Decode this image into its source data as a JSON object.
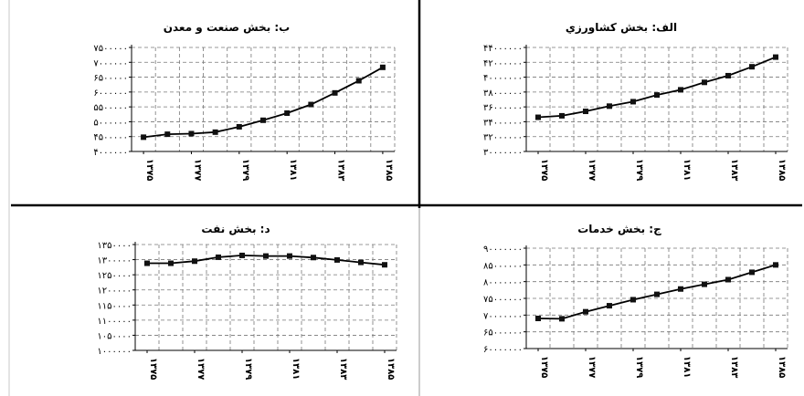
{
  "chart_data": [
    {
      "id": "a",
      "type": "line",
      "title": "الف: بخش کشاورزي",
      "x": [
        "۱۳۷۵",
        "۱۳۷۶",
        "۱۳۷۷",
        "۱۳۷۸",
        "۱۳۷۹",
        "۱۳۸۰",
        "۱۳۸۱",
        "۱۳۸۲",
        "۱۳۸۳",
        "۱۳۸۴",
        "۱۳۸۵"
      ],
      "x_tick_labels": [
        "۱۳۷۵",
        "۱۳۷۷",
        "۱۳۷۹",
        "۱۳۸۱",
        "۱۳۸۳",
        "۱۳۸۵"
      ],
      "y_tick_labels": [
        "۳۰۰۰۰۰۰۰",
        "۳۲۰۰۰۰۰۰",
        "۳۴۰۰۰۰۰۰",
        "۳۶۰۰۰۰۰۰",
        "۳۸۰۰۰۰۰۰",
        "۴۰۰۰۰۰۰۰",
        "۴۲۰۰۰۰۰۰",
        "۴۴۰۰۰۰۰۰"
      ],
      "ylim": [
        30000000,
        44000000
      ],
      "values": [
        34600000,
        34800000,
        35400000,
        36100000,
        36700000,
        37600000,
        38300000,
        39300000,
        40200000,
        41400000,
        42700000
      ],
      "grid": true
    },
    {
      "id": "b",
      "type": "line",
      "title": "ب: بخش صنعت و معدن",
      "x": [
        "۱۳۷۵",
        "۱۳۷۶",
        "۱۳۷۷",
        "۱۳۷۸",
        "۱۳۷۹",
        "۱۳۸۰",
        "۱۳۸۱",
        "۱۳۸۲",
        "۱۳۸۳",
        "۱۳۸۴",
        "۱۳۸۵"
      ],
      "x_tick_labels": [
        "۱۳۷۵",
        "۱۳۷۷",
        "۱۳۷۹",
        "۱۳۸۱",
        "۱۳۸۳",
        "۱۳۸۵"
      ],
      "y_tick_labels": [
        "۴۰۰۰۰۰۰",
        "۴۵۰۰۰۰۰",
        "۵۰۰۰۰۰۰",
        "۵۵۰۰۰۰۰",
        "۶۰۰۰۰۰۰",
        "۶۵۰۰۰۰۰",
        "۷۰۰۰۰۰۰",
        "۷۵۰۰۰۰۰"
      ],
      "ylim": [
        4000000,
        7500000
      ],
      "values": [
        4480000,
        4580000,
        4600000,
        4650000,
        4830000,
        5050000,
        5290000,
        5580000,
        5970000,
        6380000,
        6830000
      ],
      "grid": true
    },
    {
      "id": "c",
      "type": "line",
      "title": "ج: بخش خدمات",
      "x": [
        "۱۳۷۵",
        "۱۳۷۶",
        "۱۳۷۷",
        "۱۳۷۸",
        "۱۳۷۹",
        "۱۳۸۰",
        "۱۳۸۱",
        "۱۳۸۲",
        "۱۳۸۳",
        "۱۳۸۴",
        "۱۳۸۵"
      ],
      "x_tick_labels": [
        "۱۳۷۵",
        "۱۳۷۷",
        "۱۳۷۹",
        "۱۳۸۱",
        "۱۳۸۳",
        "۱۳۸۵"
      ],
      "y_tick_labels": [
        "۶۰۰۰۰۰۰۰",
        "۶۵۰۰۰۰۰۰",
        "۷۰۰۰۰۰۰۰",
        "۷۵۰۰۰۰۰۰",
        "۸۰۰۰۰۰۰۰",
        "۸۵۰۰۰۰۰۰",
        "۹۰۰۰۰۰۰۰"
      ],
      "ylim": [
        60000000,
        90000000
      ],
      "values": [
        69000000,
        68900000,
        71000000,
        72800000,
        74600000,
        76200000,
        77800000,
        79200000,
        80600000,
        82800000,
        85000000
      ],
      "grid": true
    },
    {
      "id": "d",
      "type": "line",
      "title": "د: بخش نفت",
      "x": [
        "۱۳۷۵",
        "۱۳۷۶",
        "۱۳۷۷",
        "۱۳۷۸",
        "۱۳۷۹",
        "۱۳۸۰",
        "۱۳۸۱",
        "۱۳۸۲",
        "۱۳۸۳",
        "۱۳۸۴",
        "۱۳۸۵"
      ],
      "x_tick_labels": [
        "۱۳۷۵",
        "۱۳۷۷",
        "۱۳۷۹",
        "۱۳۸۱",
        "۱۳۸۳",
        "۱۳۸۵"
      ],
      "y_tick_labels": [
        "۱۰۰۰۰۰۰",
        "۱۰۵۰۰۰۰",
        "۱۱۰۰۰۰۰",
        "۱۱۵۰۰۰۰",
        "۱۲۰۰۰۰۰",
        "۱۲۵۰۰۰۰",
        "۱۳۰۰۰۰۰",
        "۱۳۵۰۰۰۰"
      ],
      "ylim": [
        1000000,
        1350000
      ],
      "values": [
        1288000,
        1288000,
        1295000,
        1308000,
        1314000,
        1312000,
        1312000,
        1307000,
        1299000,
        1291000,
        1283000
      ],
      "grid": true
    }
  ]
}
